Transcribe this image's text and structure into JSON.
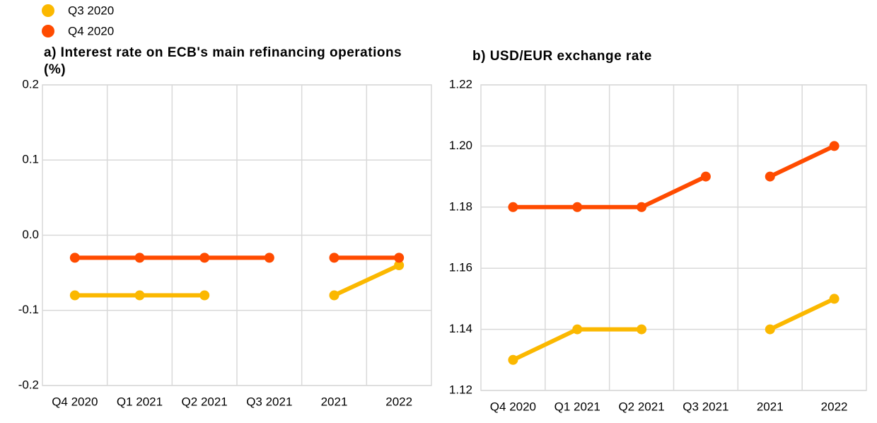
{
  "chart_data": [
    {
      "type": "line",
      "title": "a) Interest rate on ECB's main refinancing operations (%)",
      "categories": [
        "Q4 2020",
        "Q1 2021",
        "Q2 2021",
        "Q3 2021",
        "2021",
        "2022"
      ],
      "series": [
        {
          "name": "Q3 2020",
          "color": "#fbb800",
          "values": [
            -0.08,
            -0.08,
            -0.08,
            null,
            -0.08,
            -0.04
          ]
        },
        {
          "name": "Q4 2020",
          "color": "#ff4b00",
          "values": [
            -0.03,
            -0.03,
            -0.03,
            -0.03,
            -0.03,
            -0.03
          ]
        }
      ],
      "ylim": [
        -0.2,
        0.2
      ],
      "yticks": [
        -0.2,
        -0.1,
        {
          "value": 0,
          "label": "0.0"
        },
        0.1,
        0.2
      ],
      "grid": true
    },
    {
      "type": "line",
      "title": "b) USD/EUR exchange rate",
      "categories": [
        "Q4 2020",
        "Q1 2021",
        "Q2 2021",
        "Q3 2021",
        "2021",
        "2022"
      ],
      "series": [
        {
          "name": "Q3 2020",
          "color": "#fbb800",
          "values": [
            1.13,
            1.14,
            1.14,
            null,
            1.14,
            1.15
          ]
        },
        {
          "name": "Q4 2020",
          "color": "#ff4b00",
          "values": [
            1.18,
            1.18,
            1.18,
            1.19,
            1.19,
            1.2
          ]
        }
      ],
      "ylim": [
        1.12,
        1.22
      ],
      "yticks": [
        1.12,
        1.14,
        1.16,
        1.18,
        {
          "value": 1.2,
          "label": "1.20"
        },
        1.22
      ],
      "grid": true
    }
  ]
}
